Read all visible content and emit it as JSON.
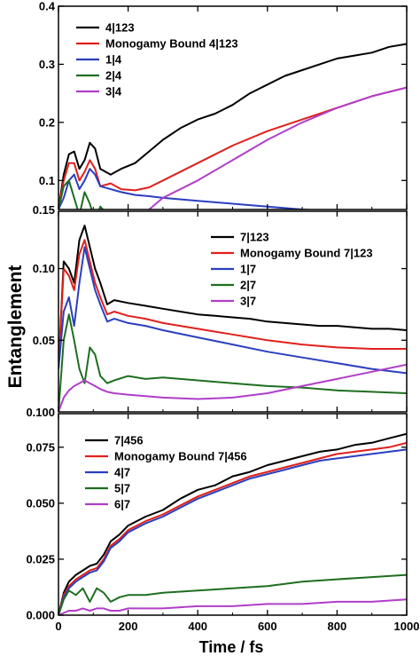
{
  "figure": {
    "ylabel": "Entanglement",
    "xlabel": "Time / fs"
  },
  "chart_data": [
    {
      "type": "line",
      "title": "",
      "xlim": [
        0,
        1000
      ],
      "ylim": [
        0.05,
        0.4
      ],
      "x_ticks": [
        0,
        200,
        400,
        600,
        800,
        1000
      ],
      "x_tick_labels_shown": false,
      "y_ticks": [
        0.1,
        0.2,
        0.3,
        0.4
      ],
      "y_tick_labels": [
        "0.1",
        "0.2",
        "0.3",
        "0.4"
      ],
      "y_bottom_label": "0.15",
      "legend_position": "top-left",
      "series": [
        {
          "name": "4|123",
          "color": "#000000",
          "x": [
            0,
            15,
            30,
            45,
            60,
            75,
            90,
            105,
            120,
            150,
            180,
            220,
            260,
            300,
            350,
            400,
            450,
            500,
            550,
            600,
            650,
            700,
            750,
            800,
            850,
            900,
            950,
            1000
          ],
          "y": [
            0.05,
            0.11,
            0.145,
            0.15,
            0.12,
            0.135,
            0.165,
            0.155,
            0.12,
            0.11,
            0.12,
            0.13,
            0.15,
            0.17,
            0.19,
            0.205,
            0.215,
            0.23,
            0.25,
            0.265,
            0.28,
            0.29,
            0.3,
            0.31,
            0.315,
            0.32,
            0.33,
            0.335
          ]
        },
        {
          "name": "Monogamy Bound 4|123",
          "color": "#e0201b",
          "x": [
            0,
            15,
            30,
            45,
            60,
            75,
            90,
            105,
            120,
            150,
            180,
            220,
            260,
            300,
            400,
            500,
            600,
            700,
            800,
            900,
            1000
          ],
          "y": [
            0.05,
            0.1,
            0.13,
            0.13,
            0.1,
            0.115,
            0.135,
            0.12,
            0.09,
            0.095,
            0.085,
            0.083,
            0.088,
            0.1,
            0.13,
            0.16,
            0.185,
            0.205,
            0.225,
            0.245,
            0.26
          ]
        },
        {
          "name": "1|4",
          "color": "#2a3fbf",
          "x": [
            0,
            15,
            30,
            45,
            60,
            75,
            90,
            105,
            120,
            150,
            180,
            220,
            260,
            300,
            400,
            500,
            600,
            700,
            800,
            900,
            1000
          ],
          "y": [
            0.05,
            0.07,
            0.1,
            0.11,
            0.085,
            0.1,
            0.12,
            0.11,
            0.09,
            0.085,
            0.08,
            0.075,
            0.073,
            0.07,
            0.065,
            0.06,
            0.055,
            0.05,
            0.047,
            0.045,
            0.043
          ]
        },
        {
          "name": "2|4",
          "color": "#1f6e1f",
          "x": [
            0,
            15,
            30,
            45,
            60,
            75,
            90,
            105,
            120,
            150,
            180,
            220,
            260,
            300,
            400,
            500,
            600,
            700,
            800,
            900,
            1000
          ],
          "y": [
            0.05,
            0.09,
            0.1,
            0.07,
            0.04,
            0.08,
            0.06,
            0.03,
            0.055,
            0.035,
            0.048,
            0.04,
            0.045,
            0.043,
            0.042,
            0.042,
            0.042,
            0.042,
            0.043,
            0.043,
            0.043
          ]
        },
        {
          "name": "3|4",
          "color": "#b03ec8",
          "x": [
            0,
            15,
            30,
            45,
            60,
            75,
            90,
            105,
            120,
            150,
            180,
            220,
            260,
            300,
            400,
            500,
            600,
            700,
            800,
            900,
            1000
          ],
          "y": [
            0.02,
            0.025,
            0.025,
            0.022,
            0.015,
            0.02,
            0.025,
            0.02,
            0.015,
            0.01,
            0.015,
            0.03,
            0.05,
            0.07,
            0.1,
            0.135,
            0.17,
            0.2,
            0.225,
            0.245,
            0.26
          ]
        }
      ]
    },
    {
      "type": "line",
      "title": "",
      "xlim": [
        0,
        1000
      ],
      "ylim": [
        0.0,
        0.14
      ],
      "x_ticks": [
        0,
        200,
        400,
        600,
        800,
        1000
      ],
      "x_tick_labels_shown": false,
      "y_ticks": [
        0.05,
        0.1
      ],
      "y_tick_labels": [
        "0.05",
        "0.10"
      ],
      "y_bottom_label": "0.100",
      "legend_position": "top-right",
      "series": [
        {
          "name": "7|123",
          "color": "#000000",
          "x": [
            0,
            15,
            30,
            45,
            60,
            75,
            90,
            105,
            120,
            140,
            160,
            200,
            250,
            300,
            350,
            400,
            450,
            500,
            550,
            600,
            650,
            700,
            750,
            800,
            850,
            900,
            950,
            1000
          ],
          "y": [
            0.03,
            0.105,
            0.1,
            0.09,
            0.12,
            0.13,
            0.115,
            0.1,
            0.09,
            0.075,
            0.078,
            0.076,
            0.074,
            0.072,
            0.07,
            0.068,
            0.067,
            0.066,
            0.065,
            0.063,
            0.062,
            0.061,
            0.06,
            0.06,
            0.059,
            0.058,
            0.058,
            0.057
          ]
        },
        {
          "name": "Monogamy Bound 7|123",
          "color": "#e0201b",
          "x": [
            0,
            15,
            30,
            45,
            60,
            75,
            90,
            105,
            120,
            140,
            160,
            200,
            250,
            300,
            400,
            500,
            600,
            700,
            800,
            900,
            1000
          ],
          "y": [
            0.03,
            0.1,
            0.095,
            0.085,
            0.11,
            0.12,
            0.105,
            0.09,
            0.08,
            0.068,
            0.07,
            0.067,
            0.065,
            0.062,
            0.058,
            0.054,
            0.05,
            0.047,
            0.045,
            0.044,
            0.044
          ]
        },
        {
          "name": "1|7",
          "color": "#2a3fbf",
          "x": [
            0,
            15,
            30,
            45,
            60,
            75,
            90,
            105,
            120,
            140,
            160,
            200,
            250,
            300,
            400,
            500,
            600,
            700,
            800,
            900,
            1000
          ],
          "y": [
            0.03,
            0.07,
            0.08,
            0.06,
            0.09,
            0.115,
            0.1,
            0.085,
            0.075,
            0.063,
            0.065,
            0.062,
            0.06,
            0.057,
            0.052,
            0.047,
            0.042,
            0.038,
            0.034,
            0.03,
            0.027
          ]
        },
        {
          "name": "2|7",
          "color": "#1f6e1f",
          "x": [
            0,
            15,
            30,
            45,
            60,
            75,
            90,
            105,
            120,
            140,
            160,
            200,
            250,
            300,
            400,
            500,
            600,
            700,
            800,
            900,
            1000
          ],
          "y": [
            0.0,
            0.05,
            0.068,
            0.05,
            0.03,
            0.02,
            0.045,
            0.04,
            0.025,
            0.02,
            0.022,
            0.025,
            0.023,
            0.024,
            0.022,
            0.02,
            0.018,
            0.017,
            0.015,
            0.014,
            0.013
          ]
        },
        {
          "name": "3|7",
          "color": "#b03ec8",
          "x": [
            0,
            15,
            30,
            45,
            60,
            75,
            90,
            105,
            120,
            140,
            160,
            200,
            250,
            300,
            400,
            500,
            600,
            700,
            800,
            900,
            1000
          ],
          "y": [
            0.0,
            0.01,
            0.015,
            0.018,
            0.02,
            0.022,
            0.02,
            0.018,
            0.016,
            0.014,
            0.013,
            0.012,
            0.011,
            0.01,
            0.009,
            0.01,
            0.013,
            0.018,
            0.023,
            0.028,
            0.033
          ]
        }
      ]
    },
    {
      "type": "line",
      "title": "",
      "xlim": [
        0,
        1000
      ],
      "ylim": [
        0.0,
        0.09
      ],
      "x_ticks": [
        0,
        200,
        400,
        600,
        800,
        1000
      ],
      "x_tick_labels": [
        "0",
        "200",
        "400",
        "600",
        "800",
        "1000"
      ],
      "y_ticks": [
        0.0,
        0.025,
        0.05,
        0.075
      ],
      "y_tick_labels": [
        "0.000",
        "0.025",
        "0.050",
        "0.075"
      ],
      "legend_position": "top-left",
      "series": [
        {
          "name": "7|456",
          "color": "#000000",
          "x": [
            0,
            15,
            30,
            50,
            70,
            90,
            110,
            130,
            150,
            175,
            200,
            250,
            300,
            350,
            400,
            450,
            500,
            550,
            600,
            650,
            700,
            750,
            800,
            850,
            900,
            950,
            1000
          ],
          "y": [
            0.0,
            0.01,
            0.015,
            0.018,
            0.02,
            0.022,
            0.023,
            0.027,
            0.033,
            0.036,
            0.04,
            0.044,
            0.047,
            0.052,
            0.056,
            0.058,
            0.062,
            0.064,
            0.067,
            0.069,
            0.071,
            0.073,
            0.074,
            0.076,
            0.077,
            0.079,
            0.081
          ]
        },
        {
          "name": "Monogamy Bound 7|456",
          "color": "#e0201b",
          "x": [
            0,
            15,
            30,
            50,
            70,
            90,
            110,
            130,
            150,
            175,
            200,
            250,
            300,
            350,
            400,
            450,
            500,
            550,
            600,
            650,
            700,
            750,
            800,
            850,
            900,
            950,
            1000
          ],
          "y": [
            0.0,
            0.009,
            0.013,
            0.016,
            0.018,
            0.02,
            0.021,
            0.025,
            0.031,
            0.034,
            0.038,
            0.042,
            0.045,
            0.049,
            0.053,
            0.056,
            0.059,
            0.062,
            0.064,
            0.066,
            0.068,
            0.07,
            0.072,
            0.073,
            0.074,
            0.075,
            0.077
          ]
        },
        {
          "name": "4|7",
          "color": "#2a3fbf",
          "x": [
            0,
            15,
            30,
            50,
            70,
            90,
            110,
            130,
            150,
            175,
            200,
            250,
            300,
            350,
            400,
            450,
            500,
            550,
            600,
            650,
            700,
            750,
            800,
            850,
            900,
            950,
            1000
          ],
          "y": [
            0.0,
            0.008,
            0.012,
            0.015,
            0.017,
            0.019,
            0.02,
            0.024,
            0.03,
            0.033,
            0.037,
            0.041,
            0.044,
            0.048,
            0.052,
            0.055,
            0.058,
            0.061,
            0.063,
            0.065,
            0.067,
            0.069,
            0.07,
            0.071,
            0.072,
            0.073,
            0.074
          ]
        },
        {
          "name": "5|7",
          "color": "#1f6e1f",
          "x": [
            0,
            15,
            30,
            50,
            70,
            90,
            110,
            130,
            150,
            175,
            200,
            250,
            300,
            400,
            500,
            600,
            700,
            800,
            900,
            1000
          ],
          "y": [
            0.0,
            0.007,
            0.011,
            0.009,
            0.012,
            0.006,
            0.012,
            0.01,
            0.006,
            0.008,
            0.009,
            0.009,
            0.01,
            0.011,
            0.012,
            0.013,
            0.015,
            0.016,
            0.017,
            0.018
          ]
        },
        {
          "name": "6|7",
          "color": "#b03ec8",
          "x": [
            0,
            15,
            30,
            50,
            70,
            90,
            110,
            130,
            150,
            175,
            200,
            250,
            300,
            400,
            500,
            600,
            700,
            800,
            900,
            1000
          ],
          "y": [
            0.0,
            0.001,
            0.002,
            0.002,
            0.003,
            0.002,
            0.003,
            0.003,
            0.002,
            0.002,
            0.003,
            0.003,
            0.003,
            0.004,
            0.004,
            0.005,
            0.005,
            0.006,
            0.006,
            0.007
          ]
        }
      ]
    }
  ]
}
